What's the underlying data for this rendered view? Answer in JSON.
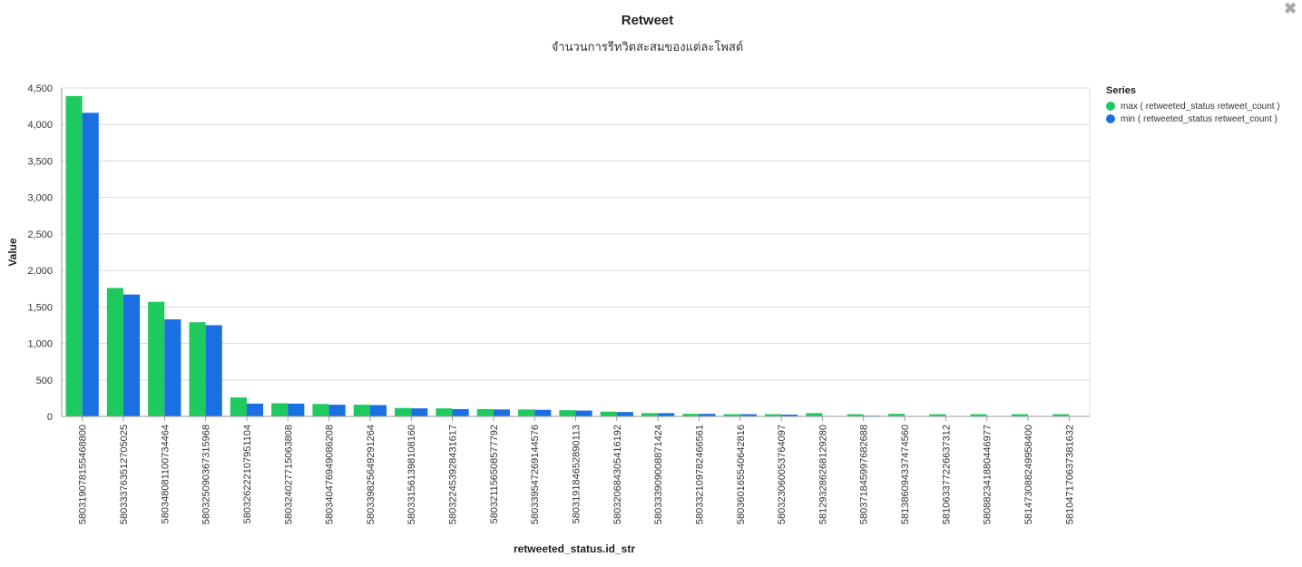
{
  "chart_data": {
    "type": "bar",
    "title": "Retweet",
    "subtitle": "จำนวนการรีทวิตสะสมของแต่ละโพสต์",
    "xlabel": "retweeted_status.id_str",
    "ylabel": "Value",
    "ylim": [
      0,
      4500
    ],
    "yticks": [
      0,
      500,
      1000,
      1500,
      2000,
      2500,
      3000,
      3500,
      4000,
      4500
    ],
    "ytick_labels": [
      "0",
      "500",
      "1,000",
      "1,500",
      "2,000",
      "2,500",
      "3,000",
      "3,500",
      "4,000",
      "4,500"
    ],
    "grid": true,
    "legend_position": "right",
    "legend_title": "Series",
    "categories": [
      "580319078155468800",
      "580333763512705025",
      "580348081100734464",
      "580325090367315968",
      "580326222107951104",
      "580324027715063808",
      "580340476949086208",
      "580339825649291264",
      "580331561398108160",
      "580322453928431617",
      "580321156508577792",
      "580339547269144576",
      "580319184652890113",
      "580320684305416192",
      "580333909008871424",
      "580332109782466561",
      "580360165540642816",
      "580323060053764097",
      "581293286268129280",
      "580371845997682688",
      "581386094337474560",
      "581063377226637312",
      "580882341880446977",
      "581473088249958400",
      "581047170637381632"
    ],
    "series": [
      {
        "name": "max ( retweeted_status retweet_count )",
        "color": "#1ec95e",
        "values": [
          4390,
          1760,
          1570,
          1290,
          260,
          180,
          170,
          160,
          115,
          110,
          100,
          95,
          85,
          65,
          45,
          35,
          30,
          30,
          45,
          30,
          35,
          30,
          30,
          30,
          30
        ]
      },
      {
        "name": "min ( retweeted_status retweet_count )",
        "color": "#1a6fe3",
        "values": [
          4160,
          1670,
          1330,
          1250,
          175,
          175,
          160,
          155,
          110,
          100,
          95,
          90,
          80,
          60,
          45,
          35,
          30,
          25,
          0,
          10,
          0,
          0,
          0,
          0,
          0
        ]
      }
    ]
  },
  "ui": {
    "close_glyph": "✖"
  }
}
